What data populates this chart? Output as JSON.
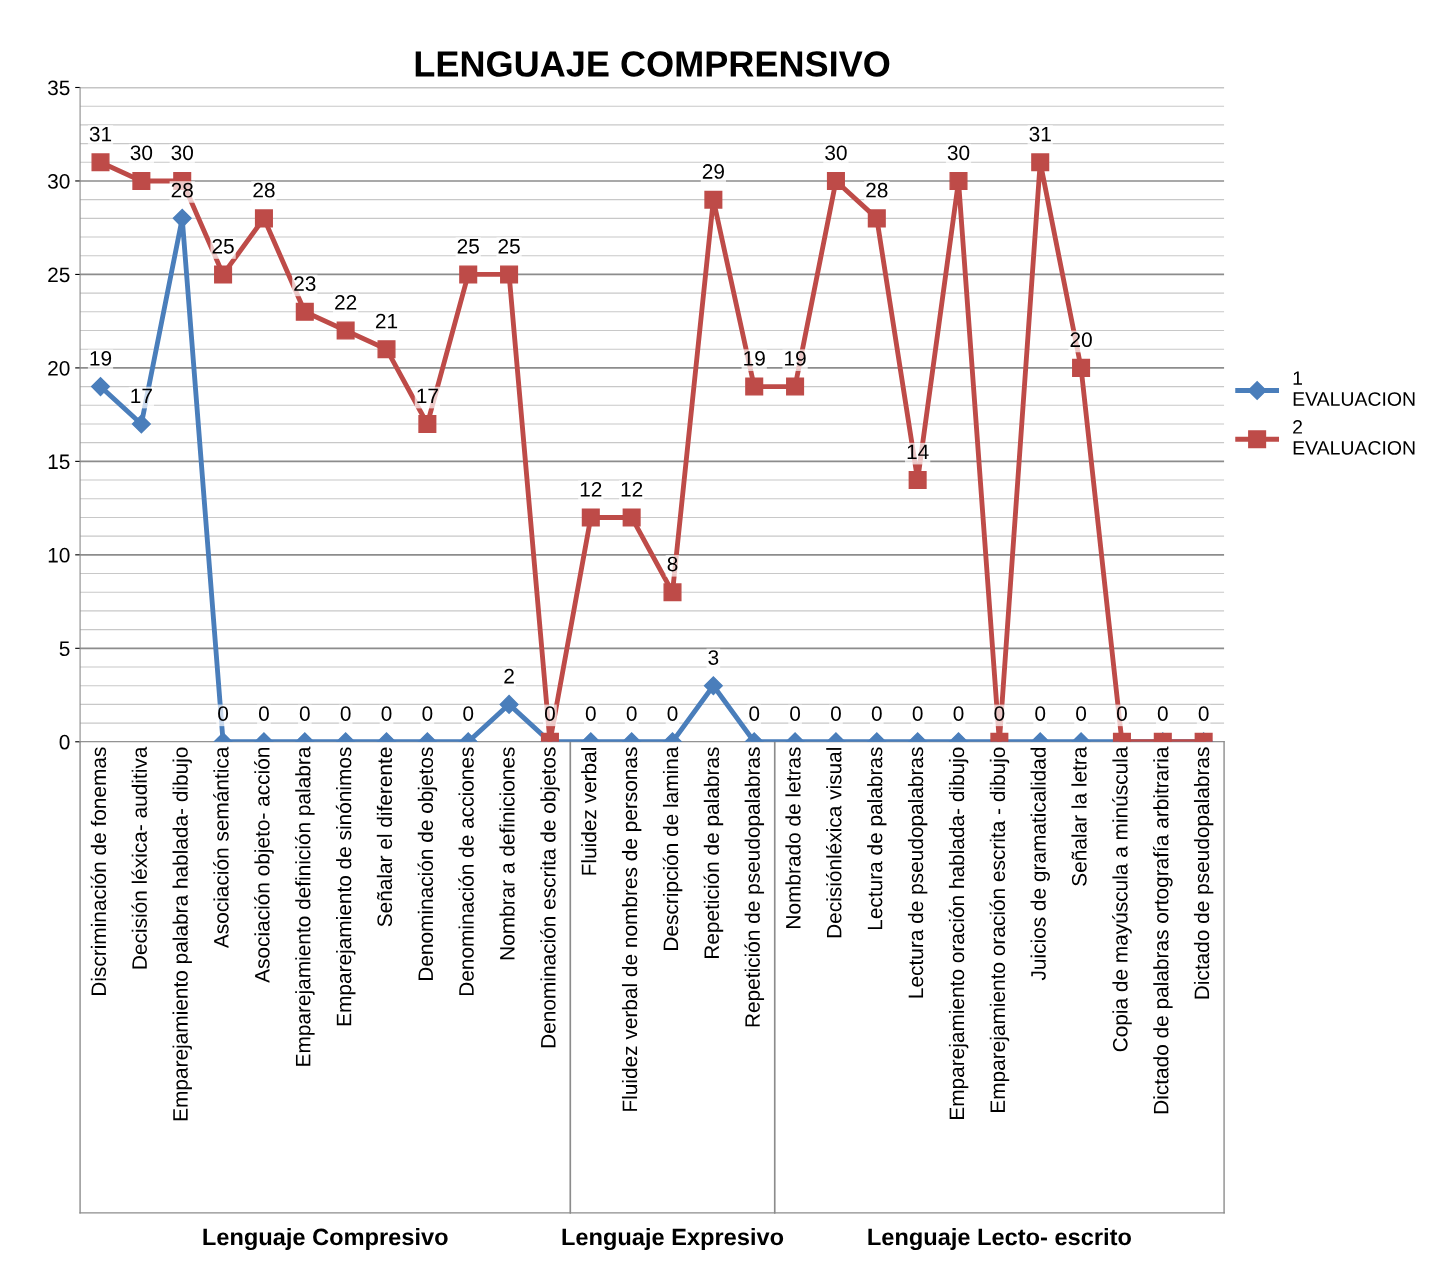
{
  "chart_data": {
    "type": "line",
    "title": "LENGUAJE COMPRENSIVO",
    "categories": [
      "Discriminación de fonemas",
      "Decisión léxica- auditiva",
      "Emparejamiento palabra hablada- dibujo",
      "Asociación semántica",
      "Asociación objeto- acción",
      "Emparejamiento definición palabra",
      "Emparejamiento de sinónimos",
      "Señalar el diferente",
      "Denominación de objetos",
      "Denominación de acciones",
      "Nombrar a definiciones",
      "Denominación escrita de objetos",
      "Fluidez verbal",
      "Fluidez verbal de nombres de personas",
      "Descripción de lamina",
      "Repetición de palabras",
      "Repetición de pseudopalabras",
      "Nombrado de letras",
      "Decisiónléxica visual",
      "Lectura de palabras",
      "Lectura de pseudopalabras",
      "Emparejamiento oración hablada- dibujo",
      "Emparejamiento oración escrita - dibujo",
      "Juicios de gramaticalidad",
      "Señalar la letra",
      "Copia de mayúscula a minúscula",
      "Dictado de palabras ortografía arbitraria",
      "Dictado de pseudopalabras"
    ],
    "series": [
      {
        "name": "1 EVALUACION",
        "color": "#4a7ebb",
        "marker": "diamond",
        "values": [
          19,
          17,
          28,
          0,
          0,
          0,
          0,
          0,
          0,
          0,
          2,
          0,
          0,
          0,
          0,
          3,
          0,
          0,
          0,
          0,
          0,
          0,
          0,
          0,
          0,
          0,
          0,
          0
        ]
      },
      {
        "name": "2 EVALUACION",
        "color": "#be4b48",
        "marker": "square",
        "value_labels": [
          "31",
          "30",
          "30",
          "25",
          "28",
          "23",
          "22",
          "21",
          "17",
          "25",
          "25",
          null,
          "12",
          "12",
          "8",
          "29",
          "19",
          "19",
          "30",
          "28",
          "14",
          "30",
          null,
          "31",
          "20",
          null,
          null,
          null
        ],
        "values": [
          31,
          30,
          30,
          25,
          28,
          23,
          22,
          21,
          17,
          25,
          25,
          0,
          12,
          12,
          8,
          29,
          19,
          19,
          30,
          28,
          14,
          30,
          0,
          31,
          20,
          0,
          0,
          0
        ]
      }
    ],
    "ylim": [
      0,
      35
    ],
    "yticks": [
      0,
      5,
      10,
      15,
      20,
      25,
      30,
      35
    ],
    "grid": true,
    "data_labels": true,
    "legend": "right",
    "line_style": "solid",
    "annotations": [
      "Lenguaje Compresivo",
      "Lenguaje Expresivo",
      "Lenguaje Lecto- escrito"
    ]
  }
}
